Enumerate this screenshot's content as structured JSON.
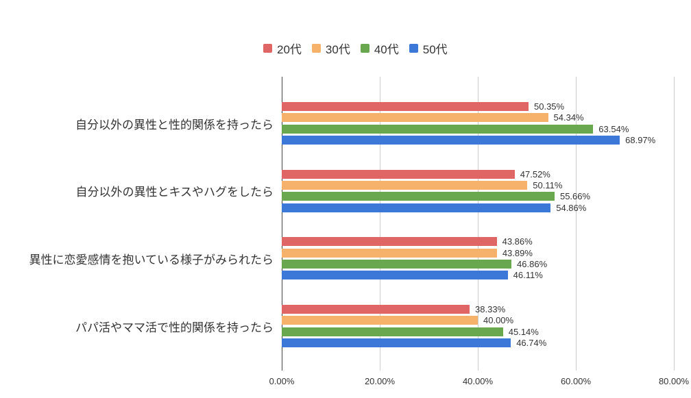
{
  "chart_data": {
    "type": "bar",
    "orientation": "horizontal",
    "title": "",
    "xlabel": "",
    "ylabel": "",
    "grid": true,
    "legend_position": "top",
    "axis_min": 0,
    "axis_max": 80,
    "x_ticks": [
      {
        "value": 0,
        "label": "0.00%"
      },
      {
        "value": 20,
        "label": "20.00%"
      },
      {
        "value": 40,
        "label": "40.00%"
      },
      {
        "value": 60,
        "label": "60.00%"
      },
      {
        "value": 80,
        "label": "80.00%"
      }
    ],
    "categories": [
      "自分以外の異性と性的関係を持ったら",
      "自分以外の異性とキスやハグをしたら",
      "異性に恋愛感情を抱いている様子がみられたら",
      "パパ活やママ活で性的関係を持ったら"
    ],
    "series": [
      {
        "name": "20代",
        "color": "#e06666",
        "values": [
          50.35,
          47.52,
          43.86,
          38.33
        ],
        "labels": [
          "50.35%",
          "47.52%",
          "43.86%",
          "38.33%"
        ]
      },
      {
        "name": "30代",
        "color": "#f6b26b",
        "values": [
          54.34,
          50.11,
          43.89,
          40.0
        ],
        "labels": [
          "54.34%",
          "50.11%",
          "43.89%",
          "40.00%"
        ]
      },
      {
        "name": "40代",
        "color": "#6aa84f",
        "values": [
          63.54,
          55.66,
          46.86,
          45.14
        ],
        "labels": [
          "63.54%",
          "55.66%",
          "46.86%",
          "45.14%"
        ]
      },
      {
        "name": "50代",
        "color": "#3c78d8",
        "values": [
          68.97,
          54.86,
          46.11,
          46.74
        ],
        "labels": [
          "68.97%",
          "54.86%",
          "46.11%",
          "46.74%"
        ]
      }
    ]
  }
}
